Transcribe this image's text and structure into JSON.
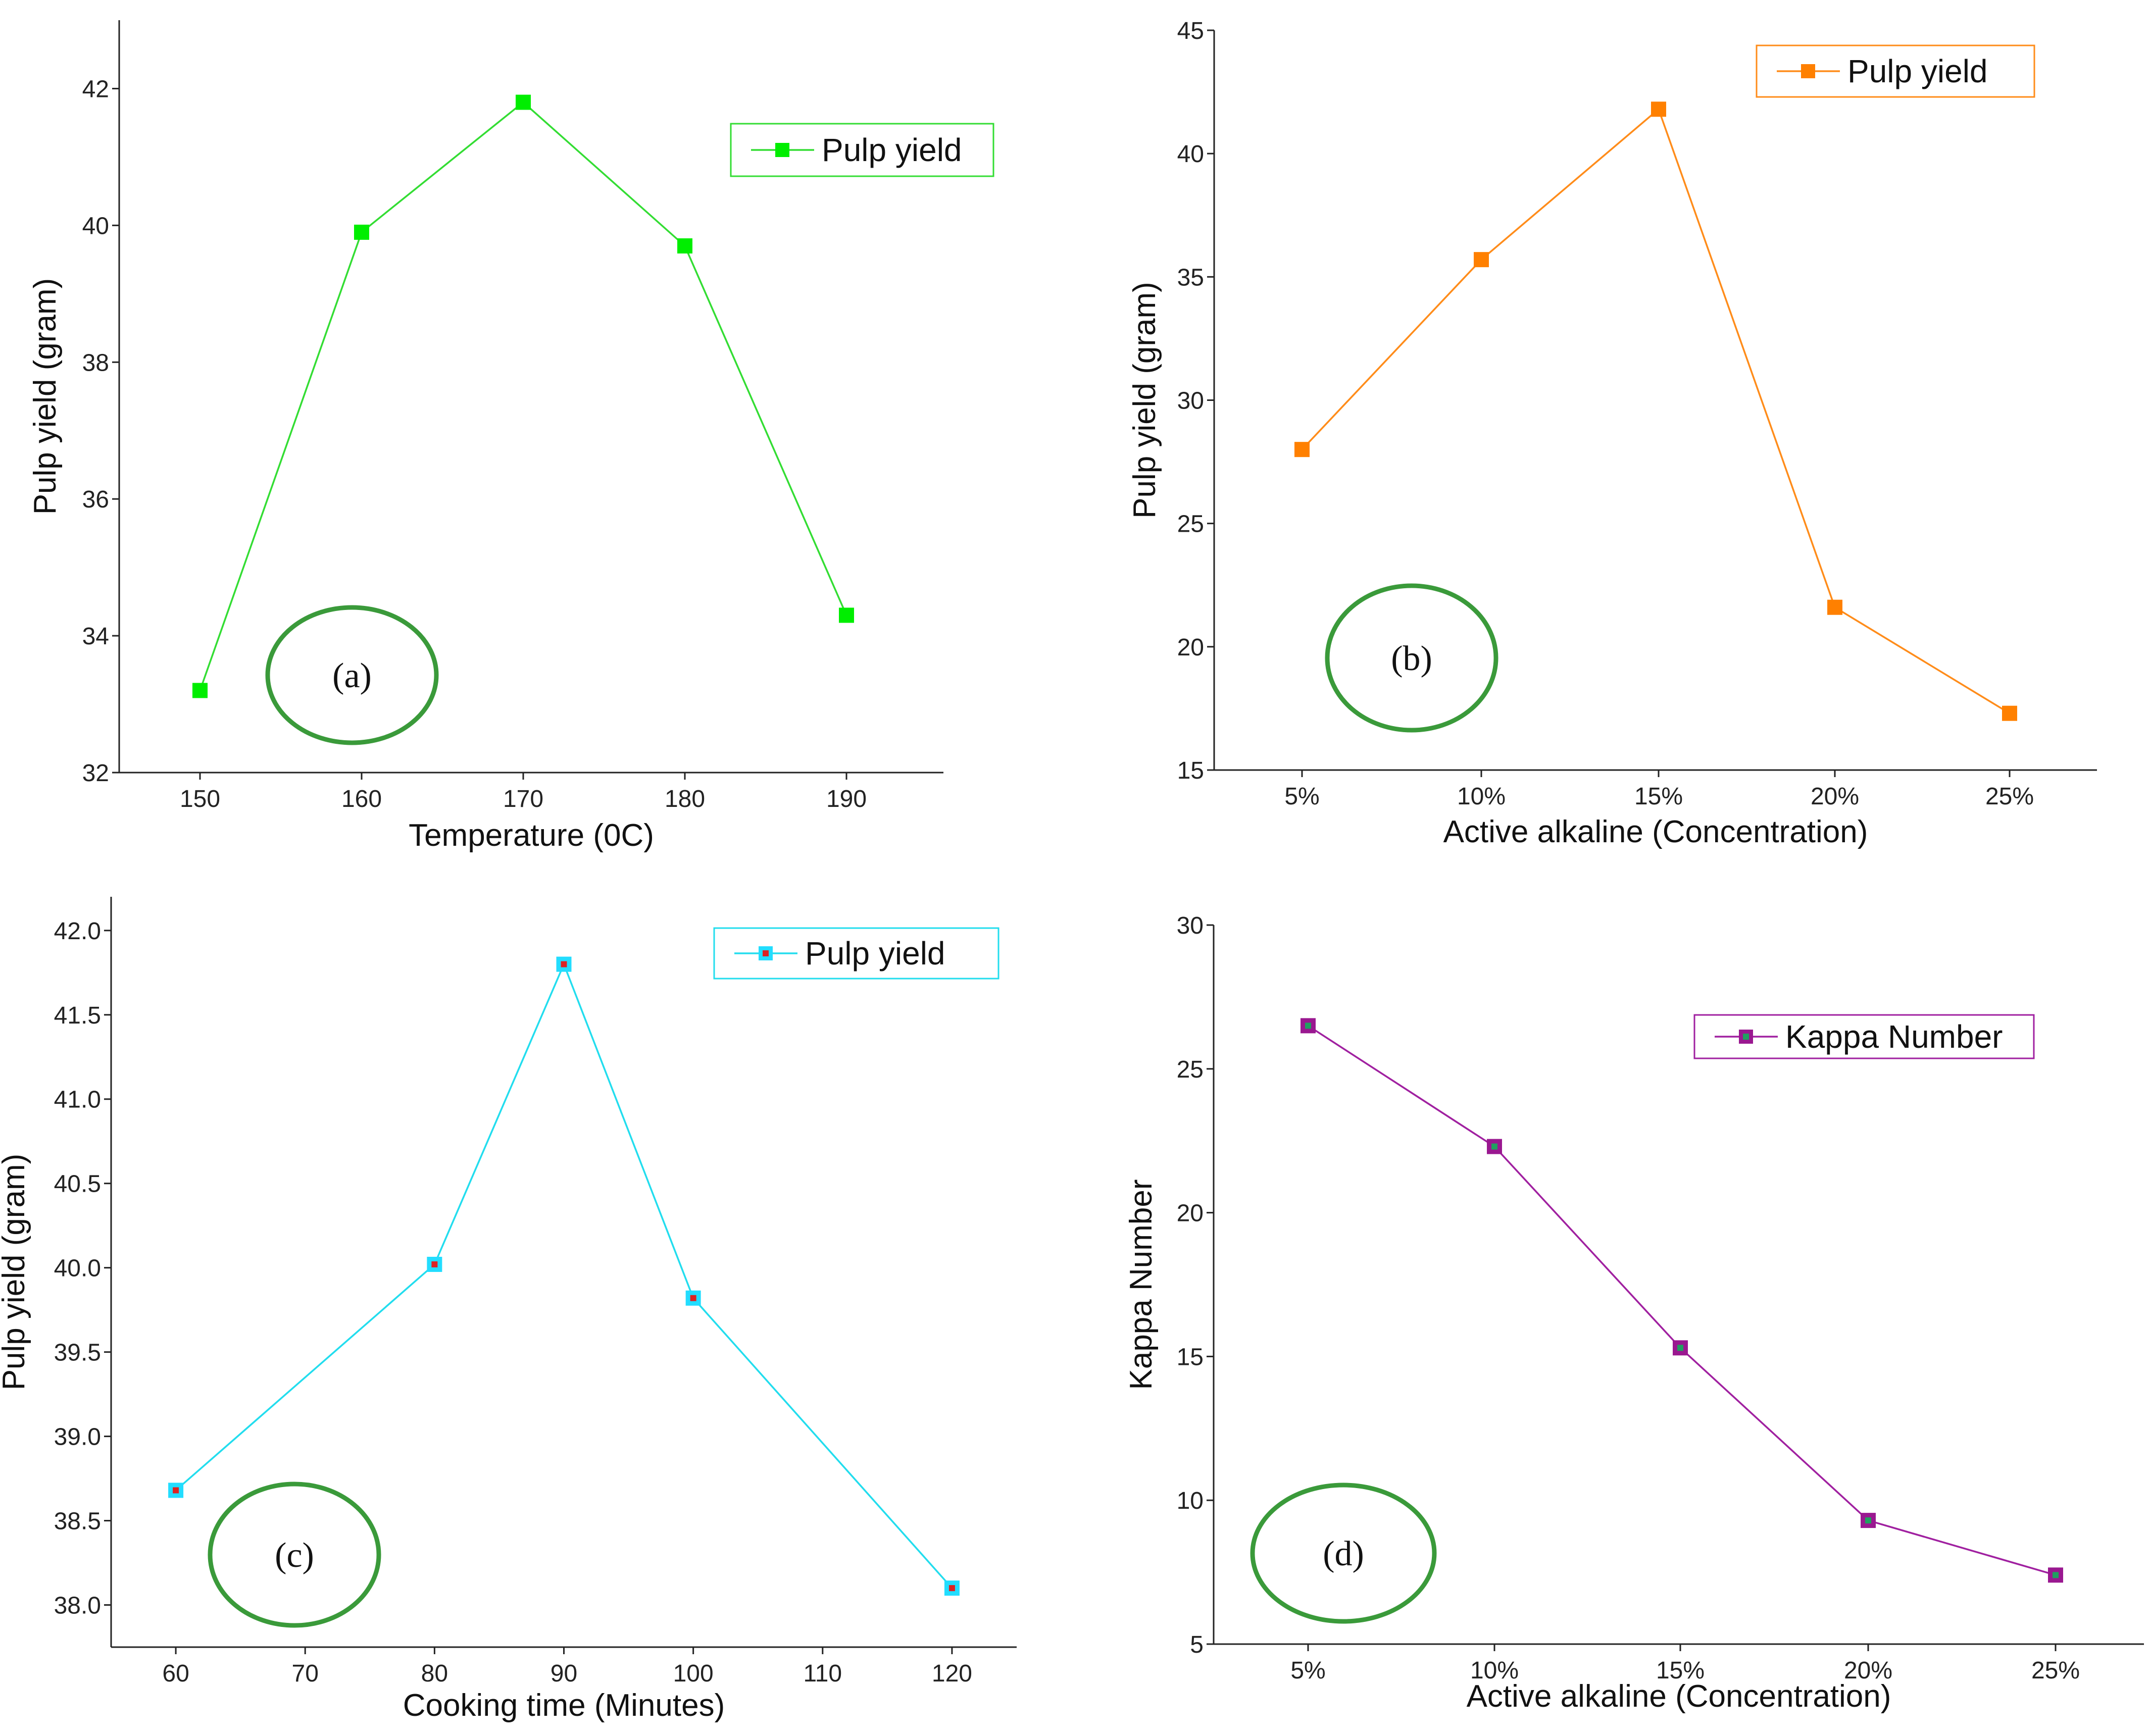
{
  "chart_data": [
    {
      "type": "line",
      "panel_label": "(a)",
      "xlabel": "Temperature (0C)",
      "ylabel": "Pulp yield (gram)",
      "x": [
        150,
        160,
        170,
        180,
        190
      ],
      "x_ticks": [
        "150",
        "160",
        "170",
        "180",
        "190"
      ],
      "xlim": [
        145,
        196
      ],
      "ylim": [
        32,
        43
      ],
      "y_ticks": [
        32,
        34,
        36,
        38,
        40,
        42
      ],
      "y_tick_labels": [
        "32",
        "34",
        "36",
        "38",
        "40",
        "42"
      ],
      "series": [
        {
          "name": "Pulp yield",
          "values": [
            33.2,
            39.9,
            41.8,
            39.7,
            34.3
          ]
        }
      ],
      "line_color": "#33dd33",
      "marker_color": "#00ee00",
      "marker_inner_color": "#00ee00",
      "legend_position": "top-right"
    },
    {
      "type": "line",
      "panel_label": "(b)",
      "xlabel": "Active alkaline (Concentration)",
      "ylabel": "Pulp yield (gram)",
      "x": [
        "5%",
        "10%",
        "15%",
        "20%",
        "25%"
      ],
      "x_ticks": [
        "5%",
        "10%",
        "15%",
        "20%",
        "25%"
      ],
      "xlim": [
        0.5,
        6.25
      ],
      "ylim": [
        15,
        45
      ],
      "y_ticks": [
        15,
        20,
        25,
        30,
        35,
        40,
        45
      ],
      "y_tick_labels": [
        "15",
        "20",
        "25",
        "30",
        "35",
        "40",
        "45"
      ],
      "series": [
        {
          "name": "Pulp yield",
          "values": [
            28,
            35.7,
            41.8,
            21.6,
            17.3
          ]
        }
      ],
      "line_color": "#ff8c1a",
      "marker_color": "#ff8000",
      "marker_inner_color": "#ff8000",
      "legend_position": "top-right"
    },
    {
      "type": "line",
      "panel_label": "(c)",
      "xlabel": "Cooking time (Minutes)",
      "ylabel": "Pulp yield (gram)",
      "x": [
        60,
        80,
        90,
        100,
        120
      ],
      "x_ticks": [
        "60",
        "70",
        "80",
        "90",
        "100",
        "110",
        "120"
      ],
      "xlim": [
        55,
        125
      ],
      "ylim": [
        37.75,
        42.2
      ],
      "y_ticks": [
        38.0,
        38.5,
        39.0,
        39.5,
        40.0,
        40.5,
        41.0,
        41.5,
        42.0
      ],
      "y_tick_labels": [
        "38.0",
        "38.5",
        "39.0",
        "39.5",
        "40.0",
        "40.5",
        "41.0",
        "41.5",
        "42.0"
      ],
      "series": [
        {
          "name": "Pulp yield",
          "values": [
            38.68,
            40.02,
            41.8,
            39.82,
            38.1
          ]
        }
      ],
      "line_color": "#22ddee",
      "marker_color": "#22ddff",
      "marker_inner_color": "#dd2222",
      "legend_position": "top-right"
    },
    {
      "type": "line",
      "panel_label": "(d)",
      "xlabel": "Active alkaline (Concentration)",
      "ylabel": "Kappa Number",
      "x": [
        "5%",
        "10%",
        "15%",
        "20%",
        "25%"
      ],
      "x_ticks": [
        "5%",
        "10%",
        "15%",
        "20%",
        "25%"
      ],
      "xlim": [
        0.5,
        6.25
      ],
      "ylim": [
        5,
        30
      ],
      "y_ticks": [
        5,
        10,
        15,
        20,
        25,
        30
      ],
      "y_tick_labels": [
        "5",
        "10",
        "15",
        "20",
        "25",
        "30"
      ],
      "series": [
        {
          "name": "Kappa Number",
          "values": [
            26.5,
            22.3,
            15.3,
            9.3,
            7.4
          ]
        }
      ],
      "line_color": "#a020a0",
      "marker_color": "#9a1890",
      "marker_inner_color": "#20a060",
      "legend_position": "top-right"
    }
  ],
  "colors": {
    "circle": "#3a9a3a",
    "axis": "#222222"
  }
}
